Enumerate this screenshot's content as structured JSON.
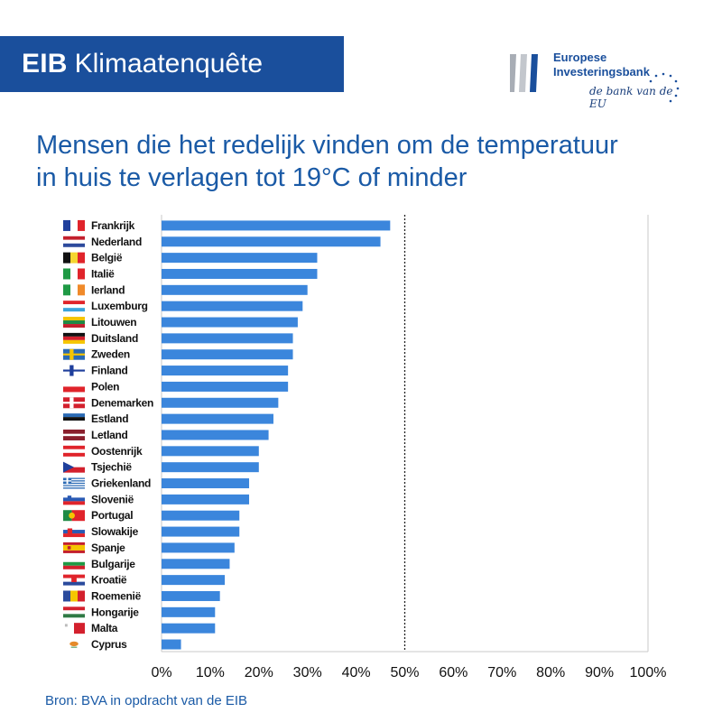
{
  "header": {
    "banner_bold": "EIB",
    "banner_rest": "Klimaatenquête",
    "logo_line1": "Europese",
    "logo_line2": "Investeringsbank",
    "logo_tagline": "de bank van de EU"
  },
  "title_line1": "Mensen die het redelijk vinden om de temperatuur",
  "title_line2": "in huis te verlagen tot 19°C of minder",
  "source": "Bron: BVA in opdracht van de EIB",
  "colors": {
    "bar": "#3b86dc",
    "brand": "#1a4f9c",
    "title": "#1a5aa6"
  },
  "chart_data": {
    "type": "bar",
    "orientation": "horizontal",
    "categories": [
      "Frankrijk",
      "Nederland",
      "België",
      "Italië",
      "Ierland",
      "Luxemburg",
      "Litouwen",
      "Duitsland",
      "Zweden",
      "Finland",
      "Polen",
      "Denemarken",
      "Estland",
      "Letland",
      "Oostenrijk",
      "Tsjechië",
      "Griekenland",
      "Slovenië",
      "Portugal",
      "Slowakije",
      "Spanje",
      "Bulgarije",
      "Kroatië",
      "Roemenië",
      "Hongarije",
      "Malta",
      "Cyprus"
    ],
    "values": [
      47,
      45,
      32,
      32,
      30,
      29,
      28,
      27,
      27,
      26,
      26,
      24,
      23,
      22,
      20,
      20,
      18,
      18,
      16,
      16,
      15,
      14,
      13,
      12,
      11,
      11,
      4
    ],
    "xlim": [
      0,
      100
    ],
    "ticks": [
      0,
      10,
      20,
      30,
      40,
      50,
      60,
      70,
      80,
      90,
      100
    ],
    "tick_labels": [
      "0%",
      "10%",
      "20%",
      "30%",
      "40%",
      "50%",
      "60%",
      "70%",
      "80%",
      "90%",
      "100%"
    ],
    "reference_line": 50,
    "grid": false,
    "flags": [
      "france-flag",
      "netherlands-flag",
      "belgium-flag",
      "italy-flag",
      "ireland-flag",
      "luxembourg-flag",
      "lithuania-flag",
      "germany-flag",
      "sweden-flag",
      "finland-flag",
      "poland-flag",
      "denmark-flag",
      "estonia-flag",
      "latvia-flag",
      "austria-flag",
      "czechia-flag",
      "greece-flag",
      "slovenia-flag",
      "portugal-flag",
      "slovakia-flag",
      "spain-flag",
      "bulgaria-flag",
      "croatia-flag",
      "romania-flag",
      "hungary-flag",
      "malta-flag",
      "cyprus-flag"
    ]
  }
}
